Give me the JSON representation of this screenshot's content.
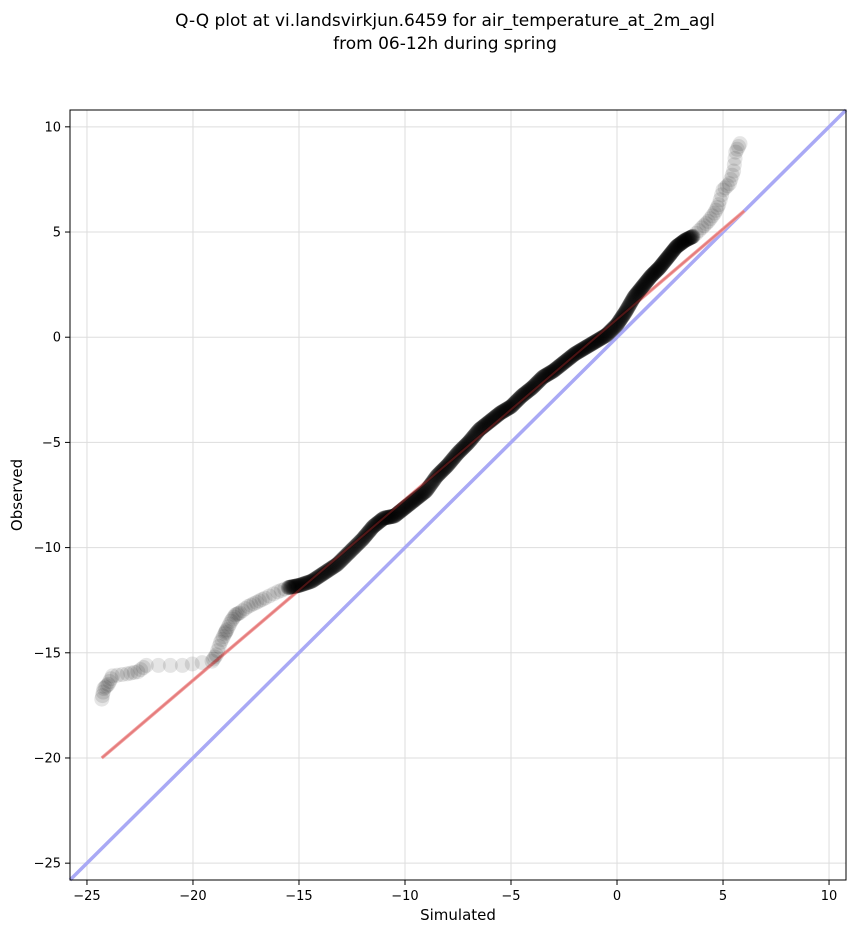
{
  "chart_data": {
    "type": "scatter",
    "title_line1": "Q-Q plot at vi.landsvirkjun.6459 for air_temperature_at_2m_agl",
    "title_line2": "from 06-12h during spring",
    "xlabel": "Simulated",
    "ylabel": "Observed",
    "xlim": [
      -25.8,
      10.8
    ],
    "ylim": [
      -25.8,
      10.8
    ],
    "xticks": [
      -25,
      -20,
      -15,
      -10,
      -5,
      0,
      5,
      10
    ],
    "yticks": [
      -25,
      -20,
      -15,
      -10,
      -5,
      0,
      5,
      10
    ],
    "xtick_labels": [
      "−25",
      "−20",
      "−15",
      "−10",
      "−5",
      "0",
      "5",
      "10"
    ],
    "ytick_labels": [
      "−25",
      "−20",
      "−15",
      "−10",
      "−5",
      "0",
      "5",
      "10"
    ],
    "grid": true,
    "colors": {
      "points": "#000000",
      "fit_line": "#f4a6a6",
      "identity_line": "#a9a9f5"
    },
    "fit_line": {
      "x": [
        -24.3,
        6.0
      ],
      "y": [
        -20.0,
        6.0
      ]
    },
    "identity_line": {
      "x": [
        -25.8,
        10.8
      ],
      "y": [
        -25.8,
        10.8
      ]
    },
    "points": {
      "x": [
        -24.3,
        -24.2,
        -24.0,
        -23.8,
        -23.1,
        -22.6,
        -22.2,
        -20.5,
        -19.1,
        -18.9,
        -18.7,
        -18.5,
        -18.4,
        -18.2,
        -18.0,
        -17.8,
        -17.4,
        -17.0,
        -16.6,
        -16.0,
        -15.5,
        -15.0,
        -14.4,
        -13.8,
        -13.2,
        -12.6,
        -12.0,
        -11.5,
        -11.0,
        -10.5,
        -10.0,
        -9.5,
        -9.0,
        -8.5,
        -8.0,
        -7.5,
        -7.0,
        -6.5,
        -6.0,
        -5.5,
        -5.0,
        -4.5,
        -4.0,
        -3.5,
        -3.0,
        -2.5,
        -2.0,
        -1.5,
        -1.0,
        -0.5,
        0.0,
        0.4,
        0.8,
        1.2,
        1.6,
        2.0,
        2.4,
        2.8,
        3.2,
        3.6,
        4.0,
        4.3,
        4.6,
        4.8,
        5.0,
        5.3,
        5.5,
        5.6,
        5.8
      ],
      "y": [
        -17.2,
        -16.7,
        -16.5,
        -16.1,
        -16.0,
        -15.9,
        -15.6,
        -15.6,
        -15.4,
        -15.1,
        -14.5,
        -14.1,
        -13.9,
        -13.5,
        -13.2,
        -13.1,
        -12.8,
        -12.6,
        -12.4,
        -12.1,
        -11.9,
        -11.8,
        -11.6,
        -11.2,
        -10.8,
        -10.2,
        -9.6,
        -9.0,
        -8.6,
        -8.5,
        -8.1,
        -7.7,
        -7.3,
        -6.6,
        -6.1,
        -5.5,
        -5.0,
        -4.4,
        -4.0,
        -3.6,
        -3.3,
        -2.8,
        -2.4,
        -1.9,
        -1.6,
        -1.2,
        -0.8,
        -0.5,
        -0.2,
        0.1,
        0.6,
        1.2,
        1.9,
        2.4,
        2.9,
        3.3,
        3.8,
        4.3,
        4.6,
        4.8,
        5.2,
        5.5,
        5.9,
        6.3,
        7.0,
        7.3,
        7.9,
        8.8,
        9.2
      ]
    }
  }
}
